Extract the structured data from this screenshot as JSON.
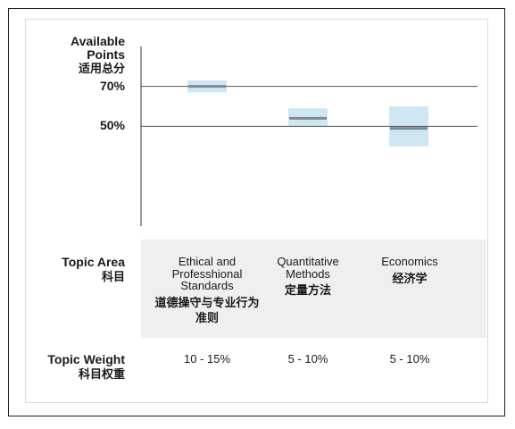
{
  "chart_data": {
    "type": "range",
    "ylabel": "Available Points",
    "ylabel_zh": "适用总分",
    "ytick_labels": [
      "70%",
      "50%"
    ],
    "yticks": [
      70,
      50
    ],
    "ylim": [
      0,
      90
    ],
    "grid_horizontal": true,
    "categories": [
      {
        "label": "Ethical and Professhional Standards",
        "label_zh": "道德操守与专业行为准则",
        "low": 67,
        "high": 73,
        "mid": 70,
        "weight": "10 - 15%"
      },
      {
        "label": "Quantitative Methods",
        "label_zh": "定量方法",
        "low": 50,
        "high": 59,
        "mid": 54,
        "weight": "5 - 10%"
      },
      {
        "label": "Economics",
        "label_zh": "经济学",
        "low": 40,
        "high": 60,
        "mid": 49,
        "weight": "5 - 10%"
      }
    ],
    "row_labels": {
      "topic_area": "Topic Area",
      "topic_area_zh": "科目",
      "topic_weight": "Topic Weight",
      "topic_weight_zh": "科目权重"
    }
  },
  "colors": {
    "range_fill": "#cfe7f3",
    "midline": "#7d8a93",
    "gridline": "#555555",
    "band": "#efefef"
  }
}
